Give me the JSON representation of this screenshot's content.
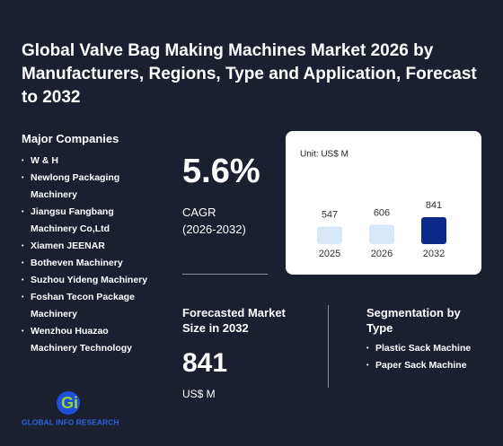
{
  "title": "Global Valve Bag Making Machines Market 2026 by Manufacturers, Regions, Type and Application, Forecast to 2032",
  "companies_heading": "Major Companies",
  "companies": [
    "W & H",
    "Newlong Packaging Machinery",
    "Jiangsu Fangbang Machinery Co,Ltd",
    "Xiamen JEENAR",
    "Botheven Machinery",
    "Suzhou Yideng Machinery",
    "Foshan Tecon Package Machinery",
    "Wenzhou Huazao Machinery Technology"
  ],
  "cagr": {
    "value": "5.6%",
    "label": "CAGR",
    "period": "(2026-2032)"
  },
  "forecast": {
    "label": "Forecasted Market Size in 2032",
    "value": "841",
    "unit": "US$ M"
  },
  "segmentation": {
    "heading": "Segmentation by Type",
    "types": [
      "Plastic Sack Machine",
      "Paper Sack Machine"
    ]
  },
  "logo_text": "GLOBAL INFO RESEARCH",
  "chart_data": {
    "type": "bar",
    "unit_label": "Unit: US$ M",
    "categories": [
      "2025",
      "2026",
      "2032"
    ],
    "values": [
      547,
      606,
      841
    ],
    "colors": [
      "#d9e8f8",
      "#d9e8f8",
      "#0d2a8a"
    ]
  }
}
